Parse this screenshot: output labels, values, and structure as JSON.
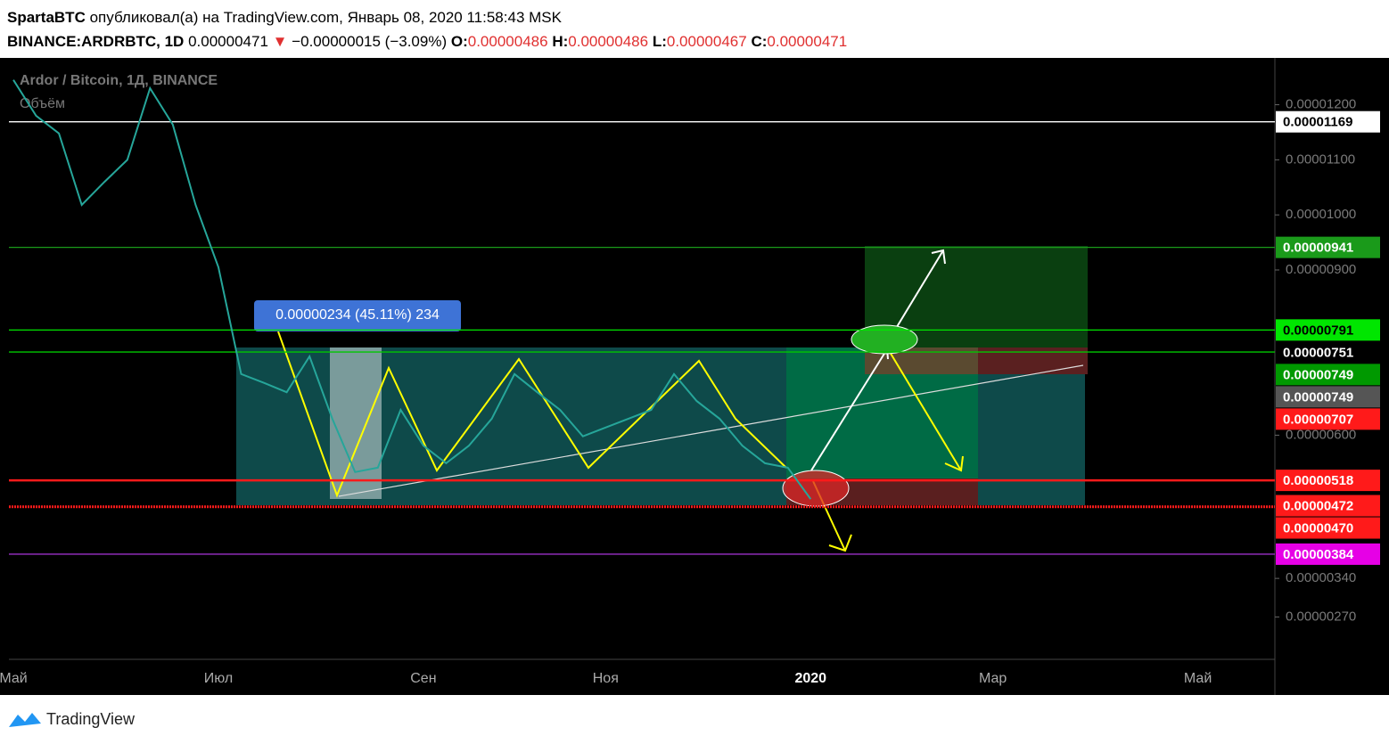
{
  "header": {
    "author": "SpartaBTC",
    "published": "опубликовал(а) на TradingView.com, Январь 08, 2020 11:58:43 MSK",
    "symbol": "BINANCE:ARDRBTC, 1D",
    "last": "0.00000471",
    "arrow": "▼",
    "change": "−0.00000015 (−3.09%)",
    "ohlc": [
      {
        "key": "O:",
        "value": "0.00000486"
      },
      {
        "key": "H:",
        "value": "0.00000486"
      },
      {
        "key": "L:",
        "value": "0.00000467"
      },
      {
        "key": "C:",
        "value": "0.00000471"
      }
    ]
  },
  "chart_data": {
    "type": "line",
    "title": "Ardor / Bitcoin, 1Д, BINANCE",
    "subtitle": "Объём",
    "categories": [
      "Май",
      null,
      null,
      null,
      null,
      null,
      null,
      null,
      null,
      "Июл",
      null,
      null,
      null,
      null,
      null,
      null,
      null,
      null,
      "Сен",
      null,
      null,
      null,
      null,
      null,
      null,
      null,
      "Ноя",
      null,
      null,
      null,
      null,
      null,
      null,
      null,
      null,
      "2020",
      null,
      null,
      null,
      null,
      null,
      null,
      null,
      "Мар",
      null,
      null,
      null,
      null,
      null,
      null,
      null,
      null,
      "Май"
    ],
    "values": [
      1.245e-05,
      1.18e-05,
      1.148e-05,
      1.018e-05,
      1.06e-05,
      1.1e-05,
      1.23e-05,
      1.164e-05,
      1.018e-05,
      9.05e-06,
      7.11e-06,
      6.95e-06,
      6.78e-06,
      7.43e-06,
      6.3e-06,
      5.33e-06,
      5.41e-06,
      6.46e-06,
      5.81e-06,
      5.49e-06,
      5.81e-06,
      6.3e-06,
      7.11e-06,
      6.78e-06,
      6.46e-06,
      5.98e-06,
      6.14e-06,
      6.3e-06,
      6.46e-06,
      7.11e-06,
      6.62e-06,
      6.3e-06,
      5.81e-06,
      5.49e-06,
      5.41e-06,
      4.84e-06,
      null,
      null,
      null,
      null,
      null,
      null,
      null,
      null,
      null,
      null,
      null,
      null,
      null,
      null,
      null,
      null,
      null
    ],
    "color": "#26a69a",
    "ylim": [
      1.93e-06,
      1.285e-05
    ],
    "yticks": [
      {
        "value": 1.2e-05,
        "label": "0.00001200"
      },
      {
        "value": 1.1e-05,
        "label": "0.00001100"
      },
      {
        "value": 1e-05,
        "label": "0.00001000"
      },
      {
        "value": 9e-06,
        "label": "0.00000900"
      },
      {
        "value": 6e-06,
        "label": "0.00000600"
      },
      {
        "value": 3.4e-06,
        "label": "0.00000340"
      },
      {
        "value": 2.7e-06,
        "label": "0.00000270"
      }
    ],
    "levels": [
      {
        "value": 1.169e-05,
        "label": "0.00001169",
        "color": "#ffffff",
        "text_color": "#000000",
        "line": "solid"
      },
      {
        "value": 9.41e-06,
        "label": "0.00000941",
        "color": "#1a9a1a",
        "text_color": "#ffffff",
        "line": "solid"
      },
      {
        "value": 7.91e-06,
        "label": "0.00000791",
        "color": "#00e600",
        "text_color": "#000000",
        "line": "solid"
      },
      {
        "value": 7.51e-06,
        "label": "0.00000751",
        "color": "#000000",
        "text_color": "#ffffff",
        "line": "solid",
        "line_color": "#00c800"
      },
      {
        "value": 7.49e-06,
        "label": "0.00000749",
        "color": "#009900",
        "text_color": "#ffffff",
        "line": "none"
      },
      {
        "value": 7.49e-06,
        "label": "0.00000749",
        "color": "#555555",
        "text_color": "#ffffff",
        "line": "none"
      },
      {
        "value": 7.07e-06,
        "label": "0.00000707",
        "color": "#ff1a1a",
        "text_color": "#ffffff",
        "line": "none"
      },
      {
        "value": 5.18e-06,
        "label": "0.00000518",
        "color": "#ff1a1a",
        "text_color": "#ffffff",
        "line": "solid"
      },
      {
        "value": 4.72e-06,
        "label": "0.00000472",
        "color": "#ff1a1a",
        "text_color": "#ffffff",
        "line": "none"
      },
      {
        "value": 4.7e-06,
        "label": "0.00000470",
        "color": "#ff1a1a",
        "text_color": "#ffffff",
        "line": "dotted"
      },
      {
        "value": 3.84e-06,
        "label": "0.00000384",
        "color": "#e600e6",
        "text_color": "#ffffff",
        "line": "solid",
        "line_color": "#9b30c8"
      }
    ],
    "annotations": [
      "0.00000234 (45.11%) 234"
    ]
  },
  "footer": {
    "brand": "TradingView"
  }
}
